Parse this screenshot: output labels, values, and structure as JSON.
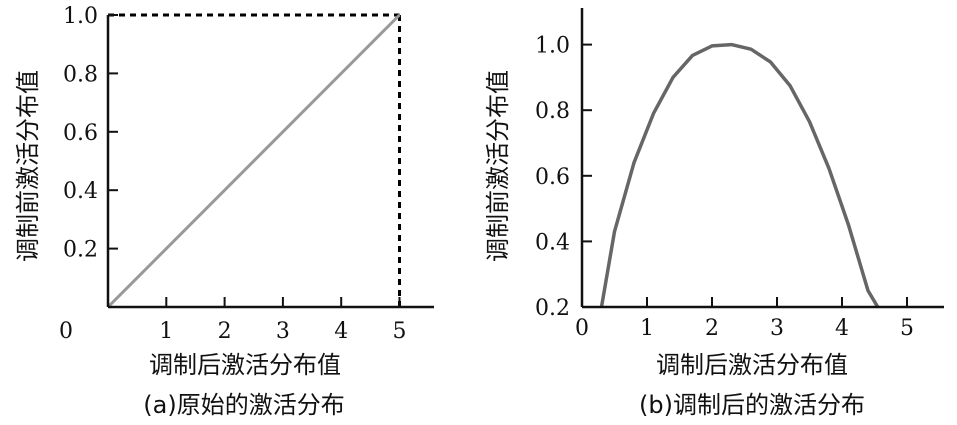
{
  "chart_data": [
    {
      "type": "line",
      "caption": "(a)原始的激活分布",
      "xlabel": "调制后激活分布值",
      "ylabel": "调制前激活分布值",
      "xlim": [
        0,
        5.6
      ],
      "ylim": [
        0,
        1.0
      ],
      "x_ticks": [
        "1",
        "2",
        "3",
        "4",
        "5"
      ],
      "y_ticks": [
        "0.2",
        "0.4",
        "0.6",
        "0.8",
        "1.0"
      ],
      "origin_label": "0",
      "series": [
        {
          "x": [
            0,
            5
          ],
          "y": [
            0,
            1.0
          ],
          "color": "#999999",
          "style": "solid"
        }
      ],
      "reference_lines": [
        {
          "from": [
            0,
            1.0
          ],
          "to": [
            5,
            1.0
          ],
          "style": "dashed",
          "color": "#000000"
        },
        {
          "from": [
            5,
            1.0
          ],
          "to": [
            5,
            0
          ],
          "style": "dashed",
          "color": "#000000"
        }
      ],
      "grid": false
    },
    {
      "type": "line",
      "caption": "(b)调制后的激活分布",
      "xlabel": "调制后激活分布值",
      "ylabel": "调制前激活分布值",
      "xlim": [
        0,
        5.6
      ],
      "ylim": [
        0.2,
        1.1
      ],
      "x_ticks": [
        "0",
        "1",
        "2",
        "3",
        "4",
        "5"
      ],
      "y_ticks": [
        "0.2",
        "0.4",
        "0.6",
        "0.8",
        "1.0"
      ],
      "series": [
        {
          "x": [
            0.3,
            0.5,
            0.8,
            1.1,
            1.4,
            1.7,
            2.0,
            2.3,
            2.6,
            2.9,
            3.2,
            3.5,
            3.8,
            4.1,
            4.4,
            4.55
          ],
          "y": [
            0.2,
            0.43,
            0.64,
            0.79,
            0.9,
            0.967,
            0.996,
            1.0,
            0.986,
            0.947,
            0.875,
            0.765,
            0.622,
            0.45,
            0.25,
            0.2
          ],
          "color": "#666666",
          "style": "solid"
        }
      ],
      "grid": false
    }
  ]
}
